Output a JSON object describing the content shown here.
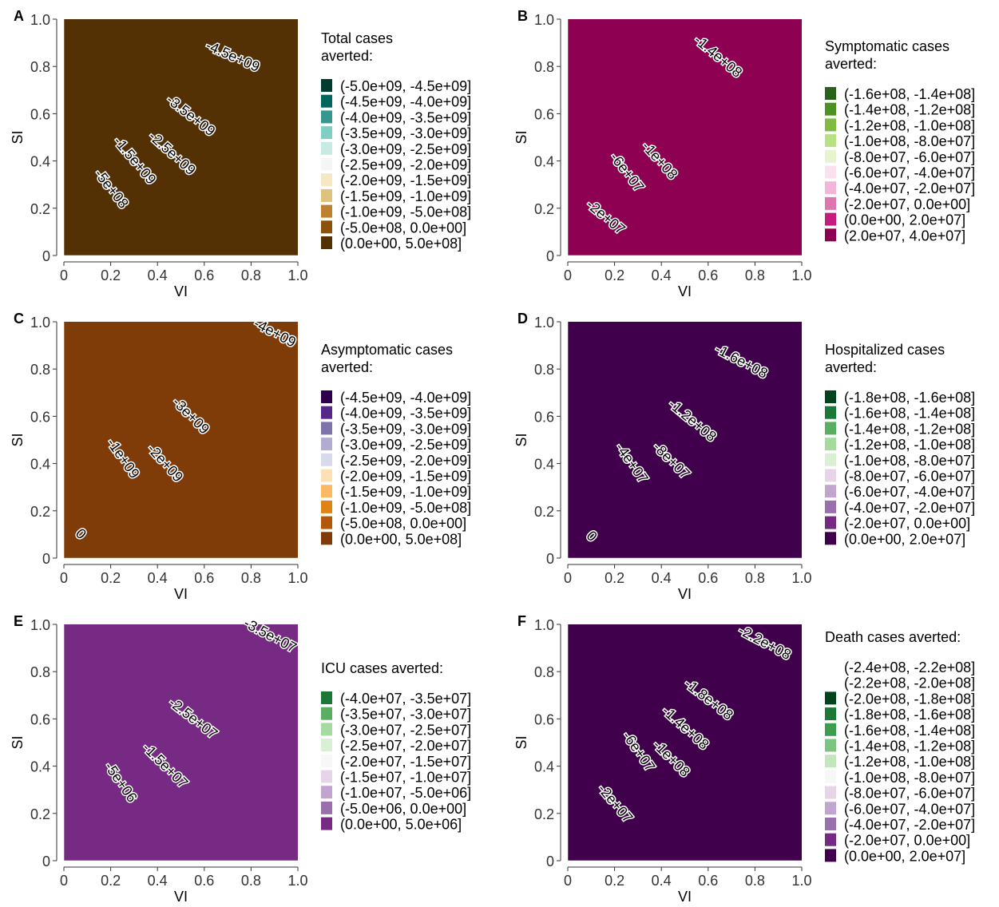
{
  "chart_data": [
    {
      "type": "heatmap",
      "panel_label": "A",
      "xlabel": "VI",
      "ylabel": "SI",
      "xlim": [
        0,
        1
      ],
      "ylim": [
        0,
        1
      ],
      "x_ticks": [
        "0",
        "0.2",
        "0.4",
        "0.6",
        "0.8",
        "1.0"
      ],
      "y_ticks": [
        "0",
        "0.2",
        "0.4",
        "0.6",
        "0.8",
        "1.0"
      ],
      "legend_title": [
        "Total cases",
        "averted:"
      ],
      "levels": [
        {
          "label": "(-5.0e+09, -4.5e+09]",
          "color": "#003c30"
        },
        {
          "label": "(-4.5e+09, -4.0e+09]",
          "color": "#01665e"
        },
        {
          "label": "(-4.0e+09, -3.5e+09]",
          "color": "#35978f"
        },
        {
          "label": "(-3.5e+09, -3.0e+09]",
          "color": "#80cdc1"
        },
        {
          "label": "(-3.0e+09, -2.5e+09]",
          "color": "#c7eae5"
        },
        {
          "label": "(-2.5e+09, -2.0e+09]",
          "color": "#f5f5f5"
        },
        {
          "label": "(-2.0e+09, -1.5e+09]",
          "color": "#f6e8c3"
        },
        {
          "label": "(-1.5e+09, -1.0e+09]",
          "color": "#dfc27d"
        },
        {
          "label": "(-1.0e+09, -5.0e+08]",
          "color": "#bf812d"
        },
        {
          "label": "(-5.0e+08, 0.0e+00]",
          "color": "#8c510a"
        },
        {
          "label": "(0.0e+00, 5.0e+08]",
          "color": "#543005"
        }
      ],
      "bands": [
        0.13,
        0.48,
        0.86,
        1.22,
        1.6,
        1.98,
        2.36,
        2.72,
        3.3,
        99
      ],
      "contour_labels": [
        {
          "text": "-4.5e+09",
          "x": 0.72,
          "y": 0.84,
          "angle": 24
        },
        {
          "text": "-3.5e+09",
          "x": 0.54,
          "y": 0.59,
          "angle": 38
        },
        {
          "text": "-2.5e+09",
          "x": 0.46,
          "y": 0.43,
          "angle": 42
        },
        {
          "text": "-1.5e+09",
          "x": 0.3,
          "y": 0.4,
          "angle": 50
        },
        {
          "text": "-5e+08",
          "x": 0.2,
          "y": 0.28,
          "angle": 52
        }
      ]
    },
    {
      "type": "heatmap",
      "panel_label": "B",
      "xlabel": "VI",
      "ylabel": "SI",
      "xlim": [
        0,
        1
      ],
      "ylim": [
        0,
        1
      ],
      "x_ticks": [
        "0",
        "0.2",
        "0.4",
        "0.6",
        "0.8",
        "1.0"
      ],
      "y_ticks": [
        "0",
        "0.2",
        "0.4",
        "0.6",
        "0.8",
        "1.0"
      ],
      "legend_title": [
        "Symptomatic cases",
        "averted:"
      ],
      "levels": [
        {
          "label": "(-1.6e+08, -1.4e+08]",
          "color": "#276419"
        },
        {
          "label": "(-1.4e+08, -1.2e+08]",
          "color": "#4d9221"
        },
        {
          "label": "(-1.2e+08, -1.0e+08]",
          "color": "#7fbc41"
        },
        {
          "label": "(-1.0e+08, -8.0e+07]",
          "color": "#b8e186"
        },
        {
          "label": "(-8.0e+07, -6.0e+07]",
          "color": "#e6f5d0"
        },
        {
          "label": "(-6.0e+07, -4.0e+07]",
          "color": "#fde0ef"
        },
        {
          "label": "(-4.0e+07, -2.0e+07]",
          "color": "#f1b6da"
        },
        {
          "label": "(-2.0e+07, 0.0e+00]",
          "color": "#de77ae"
        },
        {
          "label": "(0.0e+00, 2.0e+07]",
          "color": "#c51b7d"
        },
        {
          "label": "(2.0e+07, 4.0e+07]",
          "color": "#8e0152"
        }
      ],
      "bands": [
        0.05,
        0.2,
        0.45,
        0.72,
        0.95,
        1.2,
        3.0,
        6.0,
        99
      ],
      "contour_labels": [
        {
          "text": "-1.4e+08",
          "x": 0.64,
          "y": 0.84,
          "angle": 40
        },
        {
          "text": "-1e+08",
          "x": 0.39,
          "y": 0.4,
          "angle": 48
        },
        {
          "text": "-6e+07",
          "x": 0.25,
          "y": 0.35,
          "angle": 52
        },
        {
          "text": "-2e+07",
          "x": 0.16,
          "y": 0.16,
          "angle": 40
        }
      ]
    },
    {
      "type": "heatmap",
      "panel_label": "C",
      "xlabel": "VI",
      "ylabel": "SI",
      "xlim": [
        0,
        1
      ],
      "ylim": [
        0,
        1
      ],
      "x_ticks": [
        "0",
        "0.2",
        "0.4",
        "0.6",
        "0.8",
        "1.0"
      ],
      "y_ticks": [
        "0",
        "0.2",
        "0.4",
        "0.6",
        "0.8",
        "1.0"
      ],
      "legend_title": [
        "Asymptomatic cases",
        "averted:"
      ],
      "levels": [
        {
          "label": "(-4.5e+09, -4.0e+09]",
          "color": "#2d004b"
        },
        {
          "label": "(-4.0e+09, -3.5e+09]",
          "color": "#542788"
        },
        {
          "label": "(-3.5e+09, -3.0e+09]",
          "color": "#8073ac"
        },
        {
          "label": "(-3.0e+09, -2.5e+09]",
          "color": "#b2abd2"
        },
        {
          "label": "(-2.5e+09, -2.0e+09]",
          "color": "#d8daeb"
        },
        {
          "label": "(-2.0e+09, -1.5e+09]",
          "color": "#fee0b6"
        },
        {
          "label": "(-1.5e+09, -1.0e+09]",
          "color": "#fdb863"
        },
        {
          "label": "(-1.0e+09, -5.0e+08]",
          "color": "#e08214"
        },
        {
          "label": "(-5.0e+08, 0.0e+00]",
          "color": "#b35806"
        },
        {
          "label": "(0.0e+00, 5.0e+08]",
          "color": "#7f3b08"
        }
      ],
      "bands": [
        0.02,
        0.5,
        0.95,
        1.4,
        1.85,
        2.3,
        2.75,
        3.3,
        99
      ],
      "contour_labels": [
        {
          "text": "-4e+09",
          "x": 0.9,
          "y": 0.95,
          "angle": 28
        },
        {
          "text": "-3e+09",
          "x": 0.54,
          "y": 0.6,
          "angle": 45
        },
        {
          "text": "-2e+09",
          "x": 0.43,
          "y": 0.4,
          "angle": 48
        },
        {
          "text": "-1e+09",
          "x": 0.25,
          "y": 0.42,
          "angle": 55
        },
        {
          "text": "0",
          "x": 0.07,
          "y": 0.1,
          "angle": 45
        }
      ]
    },
    {
      "type": "heatmap",
      "panel_label": "D",
      "xlabel": "VI",
      "ylabel": "SI",
      "xlim": [
        0,
        1
      ],
      "ylim": [
        0,
        1
      ],
      "x_ticks": [
        "0",
        "0.2",
        "0.4",
        "0.6",
        "0.8",
        "1.0"
      ],
      "y_ticks": [
        "0",
        "0.2",
        "0.4",
        "0.6",
        "0.8",
        "1.0"
      ],
      "legend_title": [
        "Hospitalized cases",
        "averted:"
      ],
      "levels": [
        {
          "label": "(-1.8e+08, -1.6e+08]",
          "color": "#00441b"
        },
        {
          "label": "(-1.6e+08, -1.4e+08]",
          "color": "#1b7837"
        },
        {
          "label": "(-1.4e+08, -1.2e+08]",
          "color": "#5aae61"
        },
        {
          "label": "(-1.2e+08, -1.0e+08]",
          "color": "#a6dba0"
        },
        {
          "label": "(-1.0e+08, -8.0e+07]",
          "color": "#d9f0d3"
        },
        {
          "label": "(-8.0e+07, -6.0e+07]",
          "color": "#e7d4e8"
        },
        {
          "label": "(-6.0e+07, -4.0e+07]",
          "color": "#c2a5cf"
        },
        {
          "label": "(-4.0e+07, -2.0e+07]",
          "color": "#9970ab"
        },
        {
          "label": "(-2.0e+07, 0.0e+00]",
          "color": "#762a83"
        },
        {
          "label": "(0.0e+00, 2.0e+07]",
          "color": "#40004b"
        }
      ],
      "bands": [
        0.03,
        0.38,
        0.78,
        1.12,
        1.48,
        1.88,
        2.25,
        2.75,
        99
      ],
      "contour_labels": [
        {
          "text": "-1.6e+08",
          "x": 0.74,
          "y": 0.83,
          "angle": 28
        },
        {
          "text": "-1.2e+08",
          "x": 0.53,
          "y": 0.58,
          "angle": 40
        },
        {
          "text": "-8e+07",
          "x": 0.44,
          "y": 0.41,
          "angle": 45
        },
        {
          "text": "-4e+07",
          "x": 0.27,
          "y": 0.4,
          "angle": 55
        },
        {
          "text": "0",
          "x": 0.1,
          "y": 0.09,
          "angle": 45
        }
      ]
    },
    {
      "type": "heatmap",
      "panel_label": "E",
      "xlabel": "VI",
      "ylabel": "SI",
      "xlim": [
        0,
        1
      ],
      "ylim": [
        0,
        1
      ],
      "x_ticks": [
        "0",
        "0.2",
        "0.4",
        "0.6",
        "0.8",
        "1.0"
      ],
      "y_ticks": [
        "0",
        "0.2",
        "0.4",
        "0.6",
        "0.8",
        "1.0"
      ],
      "legend_title": [
        "ICU cases averted:"
      ],
      "levels": [
        {
          "label": "(-4.0e+07, -3.5e+07]",
          "color": "#1b7837"
        },
        {
          "label": "(-3.5e+07, -3.0e+07]",
          "color": "#5aae61"
        },
        {
          "label": "(-3.0e+07, -2.5e+07]",
          "color": "#a6dba0"
        },
        {
          "label": "(-2.5e+07, -2.0e+07]",
          "color": "#d9f0d3"
        },
        {
          "label": "(-2.0e+07, -1.5e+07]",
          "color": "#f7f7f7"
        },
        {
          "label": "(-1.5e+07, -1.0e+07]",
          "color": "#e7d4e8"
        },
        {
          "label": "(-1.0e+07, -5.0e+06]",
          "color": "#c2a5cf"
        },
        {
          "label": "(-5.0e+06, 0.0e+00]",
          "color": "#9970ab"
        },
        {
          "label": "(0.0e+00, 5.0e+06]",
          "color": "#762a83"
        }
      ],
      "bands": [
        0.08,
        0.55,
        0.96,
        1.4,
        1.9,
        2.38,
        2.85,
        99
      ],
      "contour_labels": [
        {
          "text": "-3.5e+07",
          "x": 0.88,
          "y": 0.95,
          "angle": 28
        },
        {
          "text": "-2.5e+07",
          "x": 0.55,
          "y": 0.6,
          "angle": 38
        },
        {
          "text": "-1.5e+07",
          "x": 0.43,
          "y": 0.4,
          "angle": 45
        },
        {
          "text": "-5e+06",
          "x": 0.24,
          "y": 0.33,
          "angle": 55
        }
      ]
    },
    {
      "type": "heatmap",
      "panel_label": "F",
      "xlabel": "VI",
      "ylabel": "SI",
      "xlim": [
        0,
        1
      ],
      "ylim": [
        0,
        1
      ],
      "x_ticks": [
        "0",
        "0.2",
        "0.4",
        "0.6",
        "0.8",
        "1.0"
      ],
      "y_ticks": [
        "0",
        "0.2",
        "0.4",
        "0.6",
        "0.8",
        "1.0"
      ],
      "legend_title": [
        "Death cases averted:"
      ],
      "levels": [
        {
          "label": "(-2.4e+08, -2.2e+08]",
          "color": "#ffffff"
        },
        {
          "label": "(-2.2e+08, -2.0e+08]",
          "color": "#ffffff"
        },
        {
          "label": "(-2.0e+08, -1.8e+08]",
          "color": "#00441b"
        },
        {
          "label": "(-1.8e+08, -1.6e+08]",
          "color": "#1b7837"
        },
        {
          "label": "(-1.6e+08, -1.4e+08]",
          "color": "#3e9b4f"
        },
        {
          "label": "(-1.4e+08, -1.2e+08]",
          "color": "#7cc47f"
        },
        {
          "label": "(-1.2e+08, -1.0e+08]",
          "color": "#c3e6bd"
        },
        {
          "label": "(-1.0e+08, -8.0e+07]",
          "color": "#f7f7f7"
        },
        {
          "label": "(-8.0e+07, -6.0e+07]",
          "color": "#e7d4e8"
        },
        {
          "label": "(-6.0e+07, -4.0e+07]",
          "color": "#c2a5cf"
        },
        {
          "label": "(-4.0e+07, -2.0e+07]",
          "color": "#9970ab"
        },
        {
          "label": "(-2.0e+07, 0.0e+00]",
          "color": "#762a83"
        },
        {
          "label": "(0.0e+00, 2.0e+07]",
          "color": "#40004b"
        }
      ],
      "bands": [
        0.03,
        0.3,
        0.58,
        0.86,
        1.1,
        1.36,
        1.6,
        1.86,
        2.15,
        2.45,
        2.95,
        99
      ],
      "contour_labels": [
        {
          "text": "-2.2e+08",
          "x": 0.84,
          "y": 0.92,
          "angle": 28
        },
        {
          "text": "-1.8e+08",
          "x": 0.6,
          "y": 0.68,
          "angle": 38
        },
        {
          "text": "-1.4e+08",
          "x": 0.5,
          "y": 0.56,
          "angle": 42
        },
        {
          "text": "-1e+08",
          "x": 0.44,
          "y": 0.43,
          "angle": 45
        },
        {
          "text": "-6e+07",
          "x": 0.3,
          "y": 0.46,
          "angle": 55
        },
        {
          "text": "-2e+07",
          "x": 0.2,
          "y": 0.24,
          "angle": 50
        }
      ]
    }
  ]
}
